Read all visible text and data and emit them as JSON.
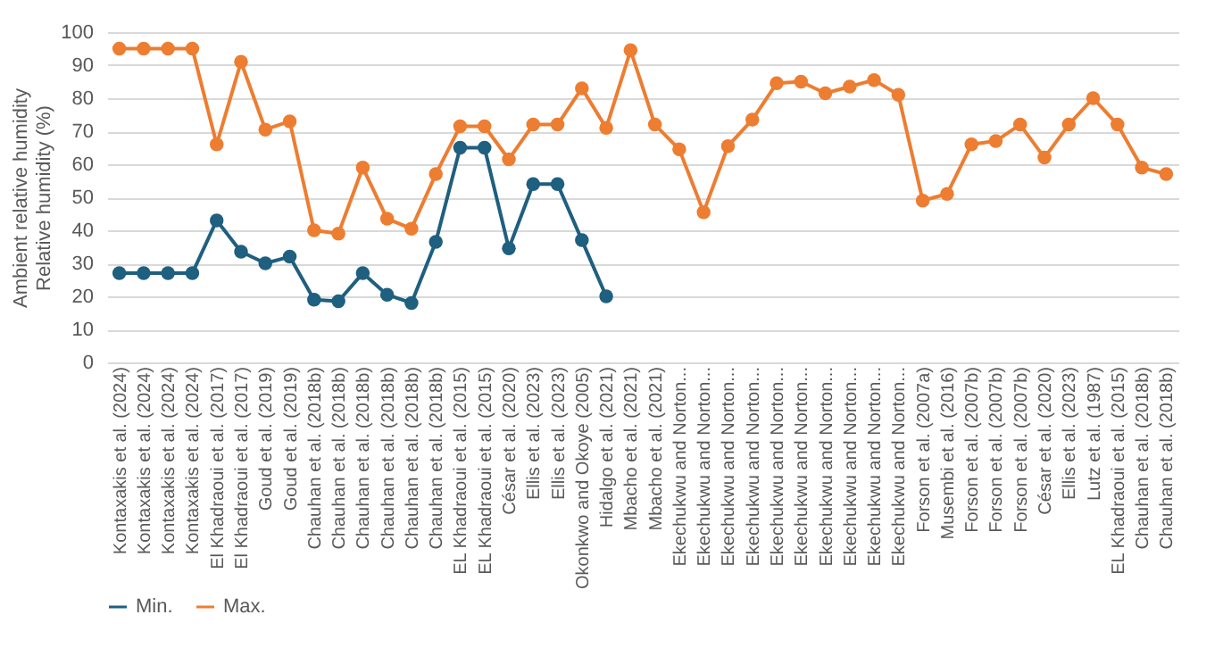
{
  "chart_data": {
    "type": "line",
    "ylabel": "Ambient relative humidity\nRelative humidity (%)",
    "categories": [
      "Kontaxakis et al. (2024)",
      "Kontaxakis et al. (2024)",
      "Kontaxakis et al. (2024)",
      "Kontaxakis et al. (2024)",
      "El Khadraoui et al. (2017)",
      "El Khadraoui et al. (2017)",
      "Goud et al. (2019)",
      "Goud et al. (2019)",
      "Chauhan et al. (2018b)",
      "Chauhan et al. (2018b)",
      "Chauhan et al. (2018b)",
      "Chauhan et al. (2018b)",
      "Chauhan et al. (2018b)",
      "Chauhan et al. (2018b)",
      "EL Khadraoui et al. (2015)",
      "EL Khadraoui et al. (2015)",
      "César et al. (2020)",
      "Ellis et al. (2023)",
      "Ellis et al. (2023)",
      "Okonkwo and Okoye (2005)",
      "Hidalgo et al. (2021)",
      "Mbacho et al. (2021)",
      "Mbacho et al. (2021)",
      "Ekechukwu and Norton...",
      "Ekechukwu and Norton...",
      "Ekechukwu and Norton...",
      "Ekechukwu and Norton...",
      "Ekechukwu and Norton...",
      "Ekechukwu and Norton...",
      "Ekechukwu and Norton...",
      "Ekechukwu and Norton...",
      "Ekechukwu and Norton...",
      "Ekechukwu and Norton...",
      "Forson et al. (2007a)",
      "Musembi et al. (2016)",
      "Forson et al. (2007b)",
      "Forson et al. (2007b)",
      "Forson et al. (2007b)",
      "César et al. (2020)",
      "Ellis et al. (2023)",
      "Lutz et al. (1987)",
      "EL Khadraoui et al. (2015)",
      "Chauhan et al. (2018b)",
      "Chauhan et al. (2018b)"
    ],
    "series": [
      {
        "name": "Min.",
        "color": "#1f5f7f",
        "values": [
          27,
          27,
          27,
          27,
          43,
          33.5,
          30,
          32,
          19,
          18.5,
          27,
          20.5,
          18,
          36.5,
          65,
          65,
          34.5,
          54,
          54,
          37,
          20,
          null,
          null,
          null,
          null,
          null,
          null,
          null,
          null,
          null,
          null,
          null,
          null,
          null,
          null,
          null,
          null,
          null,
          null,
          null,
          null,
          null,
          null,
          null
        ]
      },
      {
        "name": "Max.",
        "color": "#ed7d31",
        "values": [
          95,
          95,
          95,
          95,
          66,
          91,
          70.5,
          73,
          40,
          39,
          59,
          43.5,
          40.5,
          57,
          71.5,
          71.5,
          61.5,
          72,
          72,
          83,
          71,
          94.5,
          72,
          64.5,
          45.5,
          65.5,
          73.5,
          84.5,
          85,
          81.5,
          83.5,
          85.5,
          81,
          49,
          51,
          66,
          67,
          72,
          62,
          72,
          80,
          72,
          59,
          57
        ]
      }
    ],
    "ylim": [
      0,
      100
    ],
    "yticks": [
      0,
      10,
      20,
      30,
      40,
      50,
      60,
      70,
      80,
      90,
      100
    ],
    "grid": "y",
    "legend": "bottom",
    "marker": "circle",
    "line_style": "solid"
  }
}
